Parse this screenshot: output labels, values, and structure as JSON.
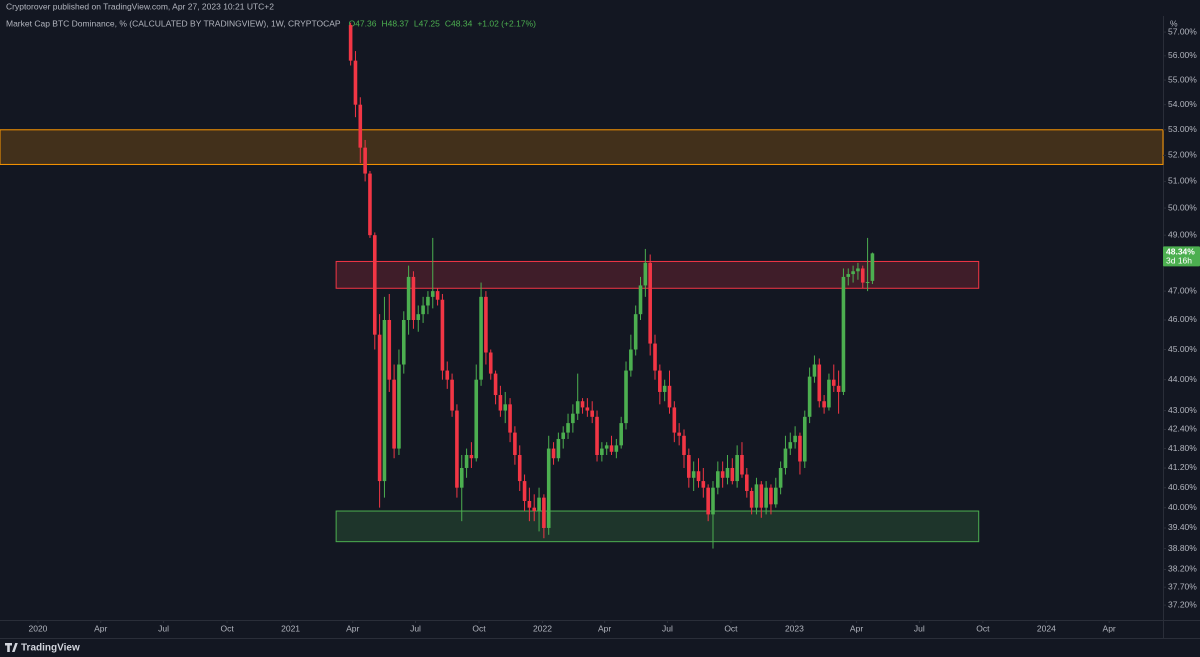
{
  "header": "Cryptorover published on TradingView.com, Apr 27, 2023 10:21 UTC+2",
  "footer": "TradingView",
  "chart_data": {
    "type": "candlestick",
    "title": "Market Cap BTC Dominance, % (CALCULATED BY TRADINGVIEW), 1W, CRYPTOCAP",
    "ohlc_legend": [
      "O47.36",
      "H48.37",
      "L47.25",
      "C48.34",
      "+1.02 (+2.17%)"
    ],
    "y_unit": "%",
    "up_color": "#4caf50",
    "down_color": "#f23645",
    "log_scale": true,
    "ylim": [
      36.79,
      57.43
    ],
    "yticks": [
      {
        "value": 57,
        "label": "57.00%"
      },
      {
        "value": 56,
        "label": "56.00%"
      },
      {
        "value": 55,
        "label": "55.00%"
      },
      {
        "value": 54,
        "label": "54.00%"
      },
      {
        "value": 53,
        "label": "53.00%"
      },
      {
        "value": 52,
        "label": "52.00%"
      },
      {
        "value": 51,
        "label": "51.00%"
      },
      {
        "value": 50,
        "label": "50.00%"
      },
      {
        "value": 49,
        "label": "49.00%"
      },
      {
        "value": 47,
        "label": "47.00%"
      },
      {
        "value": 46,
        "label": "46.00%"
      },
      {
        "value": 45,
        "label": "45.00%"
      },
      {
        "value": 44,
        "label": "44.00%"
      },
      {
        "value": 43,
        "label": "43.00%"
      },
      {
        "value": 42.4,
        "label": "42.40%"
      },
      {
        "value": 41.8,
        "label": "41.80%"
      },
      {
        "value": 41.2,
        "label": "41.20%"
      },
      {
        "value": 40.6,
        "label": "40.60%"
      },
      {
        "value": 40,
        "label": "40.00%"
      },
      {
        "value": 39.4,
        "label": "39.40%"
      },
      {
        "value": 38.8,
        "label": "38.80%"
      },
      {
        "value": 38.2,
        "label": "38.20%"
      },
      {
        "value": 37.7,
        "label": "37.70%"
      },
      {
        "value": 37.2,
        "label": "37.20%"
      }
    ],
    "xlim": [
      "2019-11-07",
      "2024-06-18"
    ],
    "xticks": [
      {
        "value": "2020-01-01",
        "label": "2020"
      },
      {
        "value": "2020-04-01",
        "label": "Apr"
      },
      {
        "value": "2020-07-01",
        "label": "Jul"
      },
      {
        "value": "2020-10-01",
        "label": "Oct"
      },
      {
        "value": "2021-01-01",
        "label": "2021"
      },
      {
        "value": "2021-04-01",
        "label": "Apr"
      },
      {
        "value": "2021-07-01",
        "label": "Jul"
      },
      {
        "value": "2021-10-01",
        "label": "Oct"
      },
      {
        "value": "2022-01-01",
        "label": "2022"
      },
      {
        "value": "2022-04-01",
        "label": "Apr"
      },
      {
        "value": "2022-07-01",
        "label": "Jul"
      },
      {
        "value": "2022-10-01",
        "label": "Oct"
      },
      {
        "value": "2023-01-01",
        "label": "2023"
      },
      {
        "value": "2023-04-01",
        "label": "Apr"
      },
      {
        "value": "2023-07-01",
        "label": "Jul"
      },
      {
        "value": "2023-10-01",
        "label": "Oct"
      },
      {
        "value": "2024-01-01",
        "label": "2024"
      },
      {
        "value": "2024-04-01",
        "label": "Apr"
      }
    ],
    "zones": [
      {
        "x": [
          "2019-11-07",
          "2024-06-18"
        ],
        "y": [
          51.65,
          53.0
        ],
        "color": "#ff9800"
      },
      {
        "x": [
          "2021-03-08",
          "2023-09-25"
        ],
        "y": [
          47.1,
          48.05
        ],
        "color": "#f23645"
      },
      {
        "x": [
          "2021-03-08",
          "2023-09-25"
        ],
        "y": [
          39.0,
          39.9
        ],
        "color": "#4caf50"
      }
    ],
    "last_price": {
      "value": 48.34,
      "label": "48.34%"
    },
    "countdown": "3d 16h",
    "x": [
      "2021-03-29",
      "2021-04-05",
      "2021-04-12",
      "2021-04-19",
      "2021-04-26",
      "2021-05-03",
      "2021-05-10",
      "2021-05-17",
      "2021-05-24",
      "2021-05-31",
      "2021-06-07",
      "2021-06-14",
      "2021-06-21",
      "2021-06-28",
      "2021-07-05",
      "2021-07-12",
      "2021-07-19",
      "2021-07-26",
      "2021-08-02",
      "2021-08-09",
      "2021-08-16",
      "2021-08-23",
      "2021-08-30",
      "2021-09-06",
      "2021-09-13",
      "2021-09-20",
      "2021-09-27",
      "2021-10-04",
      "2021-10-11",
      "2021-10-18",
      "2021-10-25",
      "2021-11-01",
      "2021-11-08",
      "2021-11-15",
      "2021-11-22",
      "2021-11-29",
      "2021-12-06",
      "2021-12-13",
      "2021-12-20",
      "2021-12-27",
      "2022-01-03",
      "2022-01-10",
      "2022-01-17",
      "2022-01-24",
      "2022-01-31",
      "2022-02-07",
      "2022-02-14",
      "2022-02-21",
      "2022-02-28",
      "2022-03-07",
      "2022-03-14",
      "2022-03-21",
      "2022-03-28",
      "2022-04-04",
      "2022-04-11",
      "2022-04-18",
      "2022-04-25",
      "2022-05-02",
      "2022-05-09",
      "2022-05-16",
      "2022-05-23",
      "2022-05-30",
      "2022-06-06",
      "2022-06-13",
      "2022-06-20",
      "2022-06-27",
      "2022-07-04",
      "2022-07-11",
      "2022-07-18",
      "2022-07-25",
      "2022-08-01",
      "2022-08-08",
      "2022-08-15",
      "2022-08-22",
      "2022-08-29",
      "2022-09-05",
      "2022-09-12",
      "2022-09-19",
      "2022-09-26",
      "2022-10-03",
      "2022-10-10",
      "2022-10-17",
      "2022-10-24",
      "2022-10-31",
      "2022-11-07",
      "2022-11-14",
      "2022-11-21",
      "2022-11-28",
      "2022-12-05",
      "2022-12-12",
      "2022-12-19",
      "2022-12-26",
      "2023-01-02",
      "2023-01-09",
      "2023-01-16",
      "2023-01-23",
      "2023-01-30",
      "2023-02-06",
      "2023-02-13",
      "2023-02-20",
      "2023-02-27",
      "2023-03-06",
      "2023-03-13",
      "2023-03-20",
      "2023-03-27",
      "2023-04-03",
      "2023-04-10",
      "2023-04-17",
      "2023-04-24"
    ],
    "open": [
      57.3,
      55.8,
      54.0,
      52.3,
      51.3,
      49.0,
      45.5,
      40.8,
      46.0,
      44.0,
      41.8,
      44.5,
      46.0,
      47.5,
      46.0,
      46.2,
      46.5,
      46.8,
      47.0,
      46.7,
      44.3,
      44.0,
      43.0,
      40.6,
      41.2,
      41.6,
      41.5,
      44.0,
      46.8,
      44.9,
      44.2,
      43.5,
      43.0,
      43.2,
      42.3,
      41.6,
      40.8,
      40.2,
      40.0,
      39.9,
      40.3,
      39.4,
      41.8,
      41.5,
      42.1,
      42.3,
      42.6,
      42.9,
      43.3,
      43.1,
      43.0,
      42.8,
      41.6,
      41.8,
      41.9,
      41.7,
      41.9,
      42.6,
      44.3,
      45.0,
      46.2,
      47.2,
      48.0,
      45.2,
      44.3,
      43.6,
      43.8,
      43.1,
      42.3,
      42.2,
      41.6,
      40.9,
      41.1,
      40.8,
      40.6,
      39.8,
      40.6,
      41.1,
      40.9,
      41.2,
      40.8,
      41.6,
      41.0,
      40.5,
      40.0,
      40.7,
      40.0,
      40.6,
      40.1,
      40.6,
      41.2,
      41.8,
      42.0,
      42.2,
      41.4,
      42.8,
      44.1,
      44.5,
      43.3,
      43.1,
      44.0,
      43.8,
      43.6,
      47.5,
      47.6,
      47.7,
      47.8,
      47.3,
      47.36
    ],
    "high": [
      57.4,
      56.2,
      54.3,
      52.6,
      51.4,
      49.1,
      46.2,
      46.8,
      46.9,
      44.5,
      45.0,
      46.3,
      47.9,
      47.7,
      46.5,
      46.8,
      47.0,
      48.9,
      47.1,
      46.9,
      44.6,
      44.2,
      43.2,
      41.6,
      41.8,
      42.0,
      44.5,
      47.3,
      47.0,
      45.0,
      44.3,
      43.8,
      43.6,
      43.4,
      42.5,
      41.9,
      41.0,
      40.6,
      40.4,
      40.6,
      40.4,
      42.2,
      42.0,
      42.3,
      42.5,
      42.9,
      43.2,
      44.2,
      43.4,
      43.4,
      43.3,
      43.0,
      42.0,
      42.0,
      42.2,
      42.1,
      42.8,
      44.6,
      45.5,
      46.5,
      47.5,
      48.5,
      48.3,
      45.5,
      44.5,
      44.0,
      44.3,
      43.3,
      42.6,
      42.4,
      41.8,
      41.4,
      41.5,
      41.2,
      40.7,
      40.8,
      41.4,
      41.4,
      41.6,
      41.5,
      41.9,
      42.0,
      41.2,
      40.6,
      40.9,
      40.8,
      40.8,
      40.7,
      40.9,
      41.4,
      42.2,
      42.3,
      42.5,
      42.3,
      43.0,
      44.4,
      44.8,
      44.7,
      43.5,
      44.2,
      44.5,
      44.3,
      47.8,
      47.8,
      47.9,
      48.0,
      47.9,
      48.9,
      48.37
    ],
    "low": [
      55.6,
      53.5,
      51.7,
      51.0,
      48.9,
      45.0,
      40.0,
      40.3,
      43.6,
      41.5,
      41.6,
      44.2,
      45.5,
      45.7,
      45.6,
      45.9,
      46.2,
      46.4,
      46.5,
      44.0,
      43.7,
      42.8,
      40.3,
      39.6,
      40.9,
      41.2,
      41.4,
      43.8,
      44.5,
      44.0,
      43.2,
      42.8,
      42.6,
      42.0,
      41.3,
      40.5,
      39.9,
      39.6,
      39.6,
      39.3,
      39.1,
      39.2,
      41.3,
      41.4,
      41.8,
      42.1,
      42.3,
      42.7,
      42.9,
      42.8,
      42.6,
      41.4,
      41.4,
      41.6,
      41.6,
      41.5,
      41.8,
      42.4,
      44.1,
      44.8,
      46.0,
      46.8,
      44.8,
      44.0,
      43.2,
      43.3,
      42.9,
      42.0,
      41.9,
      41.2,
      40.6,
      40.5,
      40.6,
      40.3,
      39.6,
      38.8,
      40.4,
      40.6,
      40.7,
      40.7,
      40.6,
      40.9,
      40.3,
      39.8,
      39.8,
      39.7,
      39.8,
      39.8,
      40.0,
      40.4,
      41.0,
      41.6,
      41.8,
      41.0,
      41.2,
      42.6,
      43.9,
      43.1,
      42.9,
      43.0,
      43.6,
      42.9,
      43.5,
      47.2,
      47.3,
      47.4,
      47.1,
      47.0,
      47.25
    ],
    "close": [
      55.8,
      54.0,
      52.3,
      51.3,
      49.0,
      45.5,
      40.8,
      46.0,
      44.0,
      41.8,
      44.5,
      46.0,
      47.5,
      46.0,
      46.2,
      46.5,
      46.8,
      47.0,
      46.7,
      44.3,
      44.0,
      43.0,
      40.6,
      41.2,
      41.6,
      41.5,
      44.0,
      46.8,
      44.9,
      44.2,
      43.5,
      43.0,
      43.2,
      42.3,
      41.6,
      40.8,
      40.2,
      40.0,
      39.9,
      40.3,
      39.4,
      41.8,
      41.5,
      42.1,
      42.3,
      42.6,
      42.9,
      43.3,
      43.1,
      43.0,
      42.8,
      41.6,
      41.8,
      41.9,
      41.7,
      41.9,
      42.6,
      44.3,
      45.0,
      46.2,
      47.2,
      48.0,
      45.2,
      44.3,
      43.6,
      43.8,
      43.1,
      42.3,
      42.2,
      41.6,
      40.9,
      41.1,
      40.8,
      40.6,
      39.8,
      40.6,
      41.1,
      40.9,
      41.2,
      40.8,
      41.6,
      41.0,
      40.5,
      40.0,
      40.7,
      40.0,
      40.6,
      40.1,
      40.6,
      41.2,
      41.8,
      42.0,
      42.2,
      41.4,
      42.8,
      44.1,
      44.5,
      43.3,
      43.1,
      44.0,
      43.8,
      43.6,
      47.5,
      47.6,
      47.7,
      47.8,
      47.3,
      47.32,
      48.34
    ]
  }
}
